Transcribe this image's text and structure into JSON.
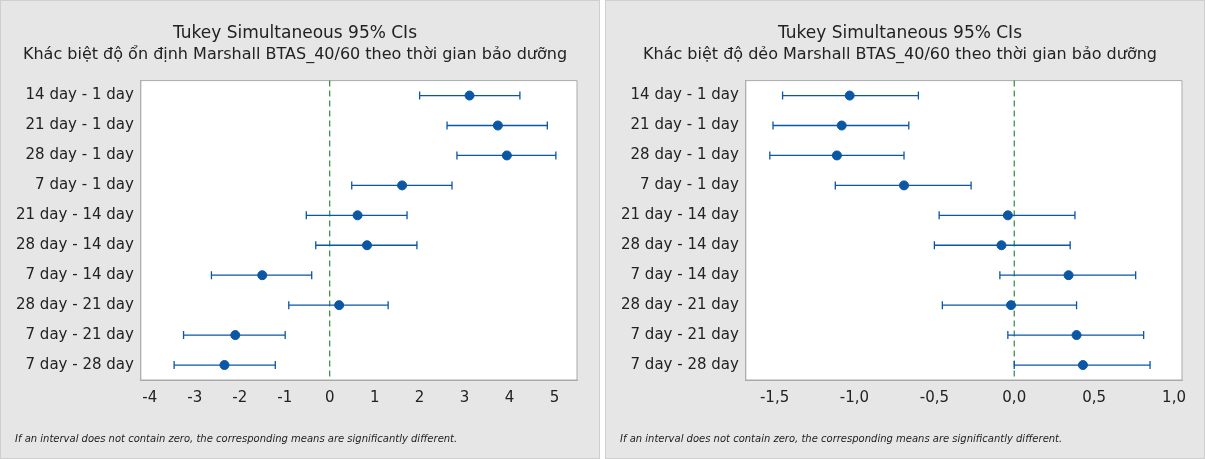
{
  "chart_data": [
    {
      "type": "scatter",
      "orientation": "horizontal",
      "title": "Tukey Simultaneous 95% CIs",
      "subtitle": "Khác biệt độ ổn định Marshall BTAS_40/60 theo thời gian bảo dưỡng",
      "categories": [
        "14 day - 1 day",
        "21 day - 1 day",
        "28 day - 1 day",
        "7 day - 1 day",
        "21 day - 14 day",
        "28 day - 14 day",
        "7 day - 14 day",
        "28 day - 21 day",
        "7 day - 21 day",
        "7 day - 28 day"
      ],
      "series": [
        {
          "color": "#0b57a4",
          "values": [
            3.11,
            3.74,
            3.94,
            1.61,
            0.62,
            0.83,
            -1.5,
            0.21,
            -2.1,
            -2.34
          ],
          "errors": [
            [
              2.0,
              4.23
            ],
            [
              2.61,
              4.84
            ],
            [
              2.83,
              5.03
            ],
            [
              0.49,
              2.72
            ],
            [
              -0.52,
              1.72
            ],
            [
              -0.31,
              1.94
            ],
            [
              -2.63,
              -0.4
            ],
            [
              -0.91,
              1.3
            ],
            [
              -3.25,
              -0.99
            ],
            [
              -3.46,
              -1.21
            ]
          ]
        }
      ],
      "xlim": [
        -4.2,
        5.5
      ],
      "xticks": [
        -4,
        -3,
        -2,
        -1,
        0,
        1,
        2,
        3,
        4,
        5
      ],
      "marker": "circle",
      "ref_lines": [
        {
          "axis": "x",
          "value": 0,
          "color": "#2e8b3e",
          "line_style": "dashed"
        }
      ],
      "annotations": [
        "If an interval does not contain zero, the corresponding means are significantly different."
      ]
    },
    {
      "type": "scatter",
      "orientation": "horizontal",
      "title": "Tukey Simultaneous 95% CIs",
      "subtitle": "Khác biệt độ dẻo Marshall BTAS_40/60 theo thời gian bảo dưỡng",
      "categories": [
        "14 day - 1 day",
        "21 day - 1 day",
        "28 day - 1 day",
        "7 day - 1 day",
        "21 day - 14 day",
        "28 day - 14 day",
        "7 day - 14 day",
        "28 day - 21 day",
        "7 day - 21 day",
        "7 day - 28 day"
      ],
      "series": [
        {
          "color": "#0b57a4",
          "values": [
            -1.03,
            -1.08,
            -1.11,
            -0.69,
            -0.04,
            -0.08,
            0.34,
            -0.02,
            0.39,
            0.43
          ],
          "errors": [
            [
              -1.45,
              -0.6
            ],
            [
              -1.51,
              -0.66
            ],
            [
              -1.53,
              -0.69
            ],
            [
              -1.12,
              -0.27
            ],
            [
              -0.47,
              0.38
            ],
            [
              -0.5,
              0.35
            ],
            [
              -0.09,
              0.76
            ],
            [
              -0.45,
              0.39
            ],
            [
              -0.04,
              0.81
            ],
            [
              0.0,
              0.85
            ]
          ]
        }
      ],
      "xlim": [
        -1.68,
        1.05
      ],
      "xticks": [
        {
          "value": -1.5,
          "label": "-1,5"
        },
        {
          "value": -1.0,
          "label": "-1,0"
        },
        {
          "value": -0.5,
          "label": "-0,5"
        },
        {
          "value": 0,
          "label": "0,0"
        },
        {
          "value": 0.5,
          "label": "0,5"
        },
        {
          "value": 1.0,
          "label": "1,0"
        }
      ],
      "marker": "circle",
      "ref_lines": [
        {
          "axis": "x",
          "value": 0,
          "color": "#2e8b3e",
          "line_style": "dashed"
        }
      ],
      "annotations": [
        "If an interval does not contain zero, the corresponding means are significantly different."
      ]
    }
  ]
}
